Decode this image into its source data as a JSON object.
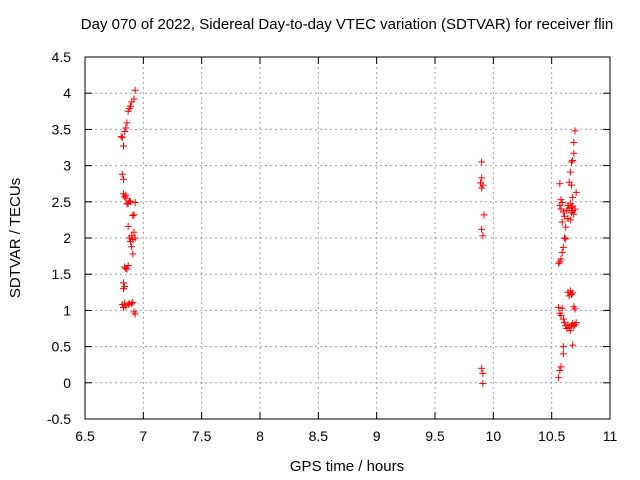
{
  "chart_data": {
    "type": "scatter",
    "title": "Day 070 of 2022, Sidereal Day-to-day VTEC variation (SDTVAR) for receiver flin",
    "xlabel": "GPS time / hours",
    "ylabel": "SDTVAR / TECUs",
    "xlim": [
      6.5,
      11
    ],
    "ylim": [
      -0.5,
      4.5
    ],
    "xticks": [
      "6.5",
      "7",
      "7.5",
      "8",
      "8.5",
      "9",
      "9.5",
      "10",
      "10.5",
      "11"
    ],
    "yticks": [
      "-0.5",
      "0",
      "0.5",
      "1",
      "1.5",
      "2",
      "2.5",
      "3",
      "3.5",
      "4",
      "4.5"
    ],
    "grid": true,
    "marker": "+",
    "color": "#ff0000",
    "series": [
      {
        "name": "SDTVAR",
        "points": [
          [
            6.81,
            3.4
          ],
          [
            6.82,
            3.39
          ],
          [
            6.83,
            3.27
          ],
          [
            6.84,
            3.47
          ],
          [
            6.85,
            3.52
          ],
          [
            6.86,
            3.59
          ],
          [
            6.87,
            3.75
          ],
          [
            6.88,
            3.79
          ],
          [
            6.89,
            3.82
          ],
          [
            6.9,
            3.88
          ],
          [
            6.92,
            3.92
          ],
          [
            6.93,
            4.04
          ],
          [
            6.82,
            2.88
          ],
          [
            6.83,
            2.81
          ],
          [
            6.83,
            2.61
          ],
          [
            6.84,
            2.57
          ],
          [
            6.85,
            2.59
          ],
          [
            6.85,
            2.55
          ],
          [
            6.86,
            2.47
          ],
          [
            6.87,
            2.48
          ],
          [
            6.88,
            2.51
          ],
          [
            6.89,
            2.5
          ],
          [
            6.93,
            2.49
          ],
          [
            6.87,
            2.16
          ],
          [
            6.91,
            2.31
          ],
          [
            6.92,
            2.32
          ],
          [
            6.88,
            2.0
          ],
          [
            6.89,
            1.95
          ],
          [
            6.9,
            2.03
          ],
          [
            6.91,
            1.98
          ],
          [
            6.92,
            2.08
          ],
          [
            6.93,
            2.0
          ],
          [
            6.9,
            1.88
          ],
          [
            6.91,
            1.78
          ],
          [
            6.84,
            1.6
          ],
          [
            6.85,
            1.58
          ],
          [
            6.86,
            1.57
          ],
          [
            6.87,
            1.62
          ],
          [
            6.83,
            1.38
          ],
          [
            6.84,
            1.33
          ],
          [
            6.83,
            1.3
          ],
          [
            6.82,
            1.08
          ],
          [
            6.83,
            1.04
          ],
          [
            6.84,
            1.1
          ],
          [
            6.85,
            1.06
          ],
          [
            6.87,
            1.08
          ],
          [
            6.88,
            1.1
          ],
          [
            6.9,
            1.09
          ],
          [
            6.91,
            1.11
          ],
          [
            6.92,
            0.98
          ],
          [
            6.93,
            0.95
          ],
          [
            9.9,
            3.05
          ],
          [
            9.9,
            2.83
          ],
          [
            9.89,
            2.76
          ],
          [
            9.91,
            2.73
          ],
          [
            9.9,
            2.69
          ],
          [
            9.92,
            2.32
          ],
          [
            9.9,
            2.12
          ],
          [
            9.91,
            2.03
          ],
          [
            9.9,
            0.2
          ],
          [
            9.91,
            0.13
          ],
          [
            9.91,
            -0.01
          ],
          [
            10.57,
            2.75
          ],
          [
            10.58,
            2.53
          ],
          [
            10.59,
            2.49
          ],
          [
            10.57,
            2.45
          ],
          [
            10.6,
            2.36
          ],
          [
            10.61,
            2.3
          ],
          [
            10.59,
            2.22
          ],
          [
            10.62,
            2.15
          ],
          [
            10.58,
            2.4
          ],
          [
            10.63,
            2.38
          ],
          [
            10.64,
            2.27
          ],
          [
            10.61,
            2.0
          ],
          [
            10.62,
            1.99
          ],
          [
            10.6,
            1.87
          ],
          [
            10.59,
            1.8
          ],
          [
            10.58,
            1.71
          ],
          [
            10.57,
            1.67
          ],
          [
            10.56,
            1.65
          ],
          [
            10.65,
            2.77
          ],
          [
            10.66,
            2.91
          ],
          [
            10.67,
            3.05
          ],
          [
            10.68,
            3.07
          ],
          [
            10.69,
            3.17
          ],
          [
            10.69,
            3.32
          ],
          [
            10.7,
            3.48
          ],
          [
            10.67,
            2.73
          ],
          [
            10.68,
            2.56
          ],
          [
            10.66,
            2.48
          ],
          [
            10.67,
            2.42
          ],
          [
            10.68,
            2.38
          ],
          [
            10.69,
            2.33
          ],
          [
            10.7,
            2.4
          ],
          [
            10.71,
            2.63
          ],
          [
            10.64,
            2.45
          ],
          [
            10.65,
            2.41
          ],
          [
            10.66,
            2.25
          ],
          [
            10.67,
            2.35
          ],
          [
            10.68,
            2.44
          ],
          [
            10.56,
            1.04
          ],
          [
            10.57,
            0.96
          ],
          [
            10.58,
            0.93
          ],
          [
            10.59,
            1.03
          ],
          [
            10.6,
            0.88
          ],
          [
            10.61,
            0.83
          ],
          [
            10.62,
            0.79
          ],
          [
            10.63,
            0.75
          ],
          [
            10.64,
            0.8
          ],
          [
            10.65,
            0.76
          ],
          [
            10.66,
            0.72
          ],
          [
            10.67,
            0.79
          ],
          [
            10.68,
            0.82
          ],
          [
            10.69,
            0.78
          ],
          [
            10.7,
            0.8
          ],
          [
            10.71,
            0.83
          ],
          [
            10.64,
            1.25
          ],
          [
            10.65,
            1.2
          ],
          [
            10.66,
            1.27
          ],
          [
            10.67,
            1.22
          ],
          [
            10.68,
            1.24
          ],
          [
            10.69,
            1.05
          ],
          [
            10.7,
            1.02
          ],
          [
            10.68,
            0.52
          ],
          [
            10.6,
            0.5
          ],
          [
            10.6,
            0.4
          ],
          [
            10.58,
            0.22
          ],
          [
            10.57,
            0.17
          ],
          [
            10.56,
            0.07
          ]
        ]
      }
    ]
  }
}
